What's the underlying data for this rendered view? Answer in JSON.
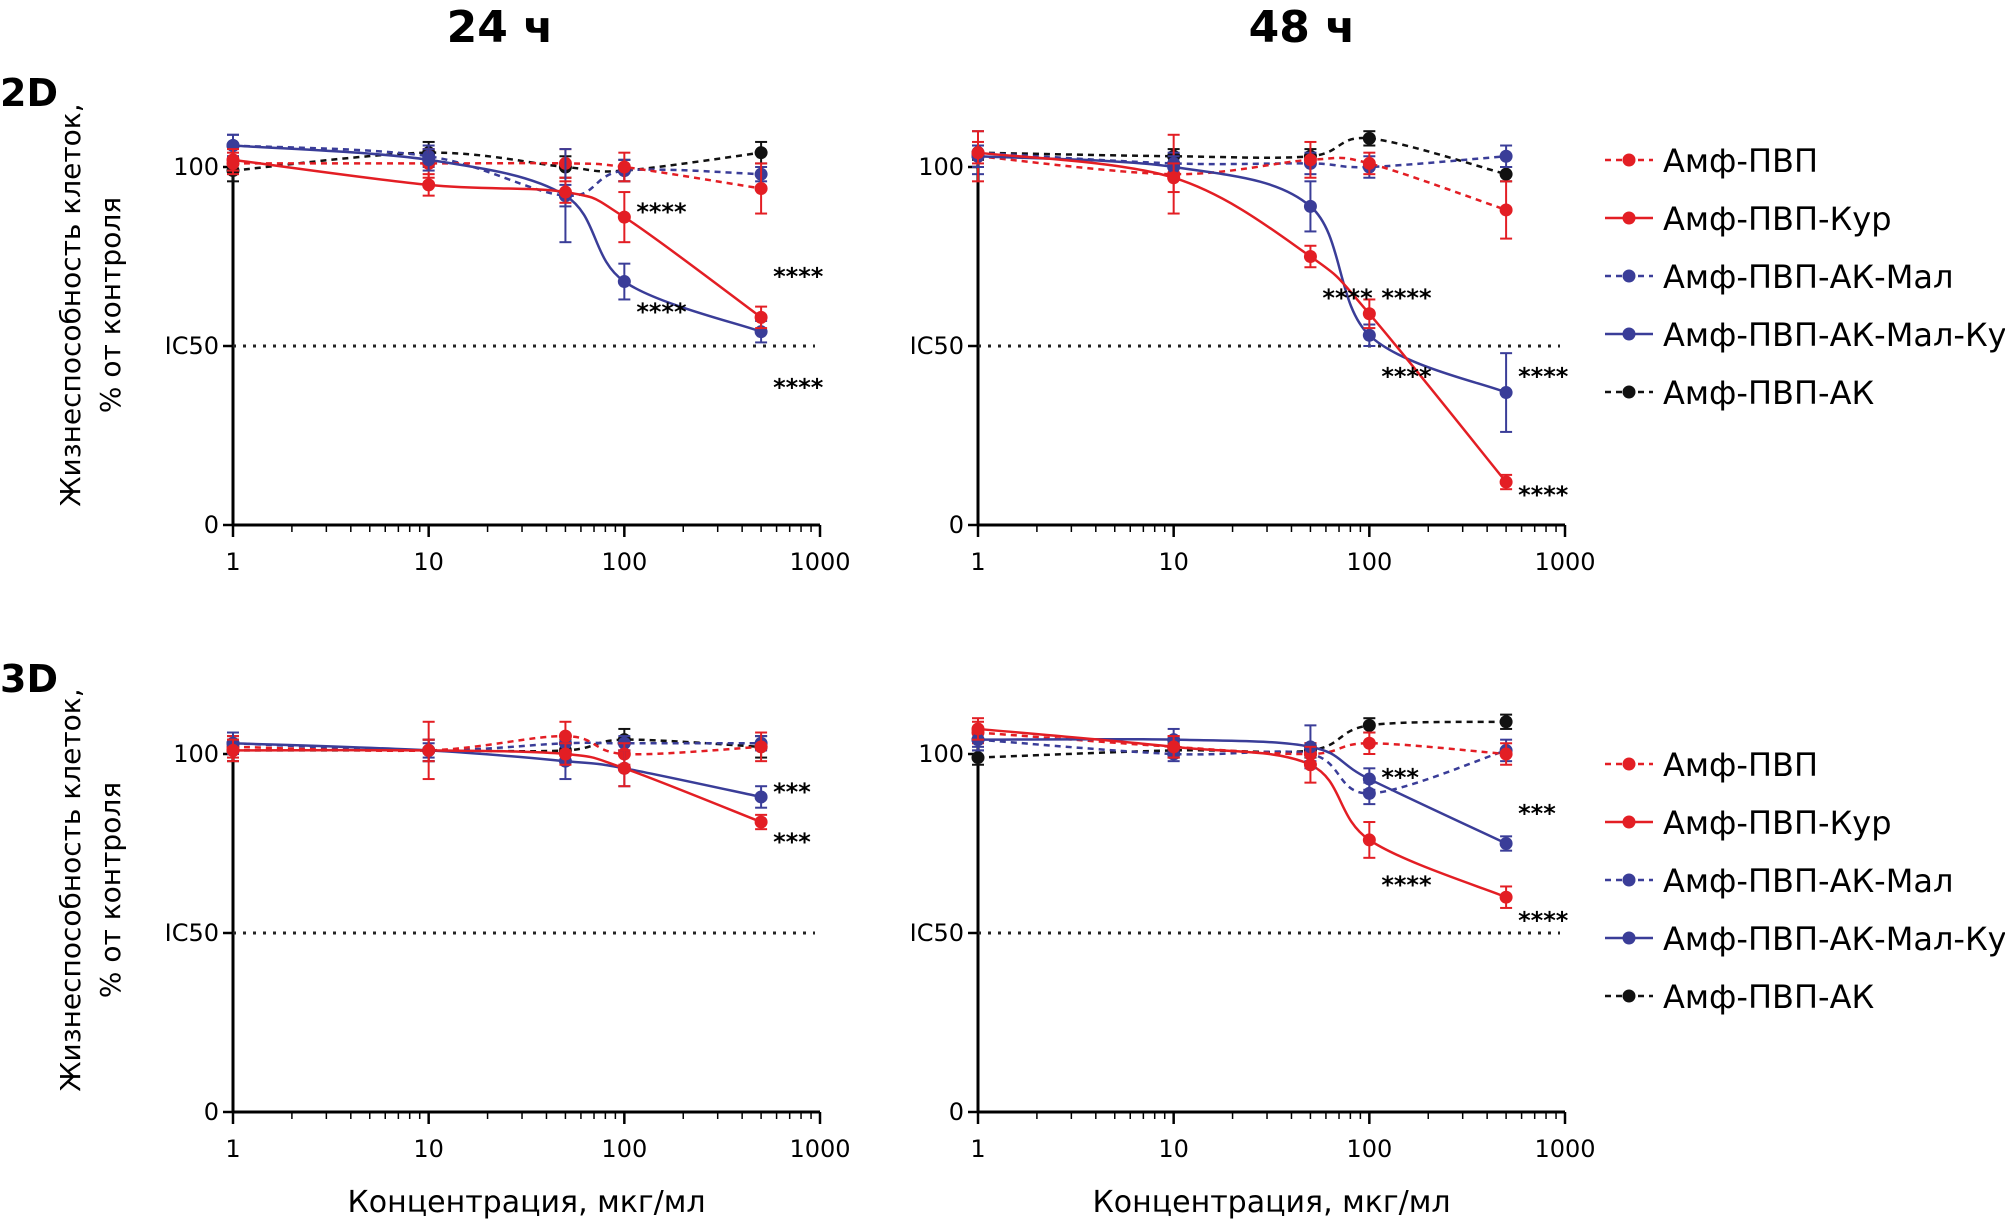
{
  "column_titles": [
    "24 ч",
    "48 ч"
  ],
  "row_labels": [
    "2D",
    "3D"
  ],
  "ylabel_line1": "Жизнеспособность клеток,",
  "ylabel_line2": "% от контроля",
  "colors": {
    "red": "#e31e24",
    "blue": "#3a3d98",
    "black": "#111111"
  },
  "legend": [
    {
      "name": "Амф-ПВП",
      "color": "#e31e24",
      "dashed": true
    },
    {
      "name": "Амф-ПВП-Кур",
      "color": "#e31e24",
      "dashed": false
    },
    {
      "name": "Амф-ПВП-АК-Мал",
      "color": "#3a3d98",
      "dashed": true
    },
    {
      "name": "Амф-ПВП-АК-Мал-Кур",
      "color": "#3a3d98",
      "dashed": false
    },
    {
      "name": "Амф-ПВП-АК",
      "color": "#111111",
      "dashed": true
    }
  ],
  "chart_data": [
    {
      "type": "scatter",
      "panel": "2D 24 ч",
      "xlabel": "",
      "xscale": "log",
      "xlim": [
        1,
        1000
      ],
      "ylim": [
        0,
        120
      ],
      "x_ticks": [
        "1",
        "10",
        "100",
        "1000"
      ],
      "y_ticks": [
        "0",
        "IC50",
        "100"
      ],
      "reference_line": {
        "label": "IC50",
        "y": 50
      },
      "series": [
        {
          "name": "Амф-ПВП",
          "x": [
            1,
            10,
            50,
            100,
            500
          ],
          "y": [
            101,
            101,
            101,
            100,
            94
          ],
          "err": [
            3,
            4,
            4,
            4,
            7
          ]
        },
        {
          "name": "Амф-ПВП-Кур",
          "x": [
            1,
            10,
            50,
            100,
            500
          ],
          "y": [
            102,
            95,
            93,
            86,
            58
          ],
          "err": [
            3,
            3,
            3,
            7,
            3
          ]
        },
        {
          "name": "Амф-ПВП-АК-Мал",
          "x": [
            1,
            10,
            50,
            100,
            500
          ],
          "y": [
            106,
            103,
            92,
            99,
            98
          ],
          "err": [
            3,
            3,
            3,
            3,
            2
          ]
        },
        {
          "name": "Амф-ПВП-АК-Мал-Кур",
          "x": [
            1,
            10,
            50,
            100,
            500
          ],
          "y": [
            106,
            102,
            92,
            68,
            54
          ],
          "err": [
            3,
            3,
            13,
            5,
            3
          ]
        },
        {
          "name": "Амф-ПВП-АК",
          "x": [
            1,
            10,
            50,
            100,
            500
          ],
          "y": [
            99,
            104,
            100,
            99,
            104
          ],
          "err": [
            3,
            3,
            3,
            3,
            3
          ]
        }
      ],
      "annotations": [
        {
          "text": "****",
          "x": 100,
          "y": 88
        },
        {
          "text": "****",
          "x": 500,
          "y": 70
        },
        {
          "text": "****",
          "x": 100,
          "y": 60
        },
        {
          "text": "****",
          "x": 500,
          "y": 39
        }
      ]
    },
    {
      "type": "scatter",
      "panel": "2D 48 ч",
      "xlabel": "",
      "xscale": "log",
      "xlim": [
        1,
        1000
      ],
      "ylim": [
        0,
        120
      ],
      "x_ticks": [
        "1",
        "10",
        "100",
        "1000"
      ],
      "y_ticks": [
        "0",
        "IC50",
        "100"
      ],
      "reference_line": {
        "label": "IC50",
        "y": 50
      },
      "series": [
        {
          "name": "Амф-ПВП",
          "x": [
            1,
            10,
            50,
            100,
            500
          ],
          "y": [
            103,
            98,
            102,
            101,
            88
          ],
          "err": [
            7,
            11,
            5,
            3,
            8
          ]
        },
        {
          "name": "Амф-ПВП-Кур",
          "x": [
            1,
            10,
            50,
            100,
            500
          ],
          "y": [
            104,
            97,
            75,
            59,
            12
          ],
          "err": [
            3,
            4,
            3,
            4,
            2
          ]
        },
        {
          "name": "Амф-ПВП-АК-Мал",
          "x": [
            1,
            10,
            50,
            100,
            500
          ],
          "y": [
            104,
            101,
            101,
            100,
            103
          ],
          "err": [
            6,
            3,
            3,
            3,
            3
          ]
        },
        {
          "name": "Амф-ПВП-АК-Мал-Кур",
          "x": [
            1,
            10,
            50,
            100,
            500
          ],
          "y": [
            103,
            100,
            89,
            53,
            37
          ],
          "err": [
            3,
            3,
            7,
            3,
            11
          ]
        },
        {
          "name": "Амф-ПВП-АК",
          "x": [
            1,
            10,
            50,
            100,
            500
          ],
          "y": [
            104,
            103,
            103,
            108,
            98
          ],
          "err": [
            2,
            2,
            2,
            2,
            2
          ]
        }
      ],
      "annotations": [
        {
          "text": "****",
          "x": 50,
          "y": 64
        },
        {
          "text": "****",
          "x": 100,
          "y": 64
        },
        {
          "text": "****",
          "x": 100,
          "y": 42
        },
        {
          "text": "****",
          "x": 500,
          "y": 42
        },
        {
          "text": "****",
          "x": 500,
          "y": 9
        }
      ]
    },
    {
      "type": "scatter",
      "panel": "3D 24 ч",
      "xlabel": "Концентрация, мкг/мл",
      "xscale": "log",
      "xlim": [
        1,
        1000
      ],
      "ylim": [
        0,
        120
      ],
      "x_ticks": [
        "1",
        "10",
        "100",
        "1000"
      ],
      "y_ticks": [
        "0",
        "IC50",
        "100"
      ],
      "reference_line": {
        "label": "IC50",
        "y": 50
      },
      "series": [
        {
          "name": "Амф-ПВП",
          "x": [
            1,
            10,
            50,
            100,
            500
          ],
          "y": [
            102,
            101,
            105,
            100,
            102
          ],
          "err": [
            3,
            8,
            4,
            3,
            4
          ]
        },
        {
          "name": "Амф-ПВП-Кур",
          "x": [
            1,
            10,
            50,
            100,
            500
          ],
          "y": [
            101,
            101,
            100,
            96,
            81
          ],
          "err": [
            3,
            3,
            3,
            5,
            2
          ]
        },
        {
          "name": "Амф-ПВП-АК-Мал",
          "x": [
            1,
            10,
            50,
            100,
            500
          ],
          "y": [
            103,
            101,
            103,
            103,
            103
          ],
          "err": [
            2,
            2,
            2,
            2,
            2
          ]
        },
        {
          "name": "Амф-ПВП-АК-Мал-Кур",
          "x": [
            1,
            10,
            50,
            100,
            500
          ],
          "y": [
            103,
            101,
            98,
            96,
            88
          ],
          "err": [
            3,
            3,
            5,
            5,
            3
          ]
        },
        {
          "name": "Амф-ПВП-АК",
          "x": [
            1,
            10,
            50,
            100,
            500
          ],
          "y": [
            101,
            101,
            101,
            104,
            102
          ],
          "err": [
            3,
            3,
            3,
            3,
            3
          ]
        }
      ],
      "annotations": [
        {
          "text": "***",
          "x": 500,
          "y": 90
        },
        {
          "text": "***",
          "x": 500,
          "y": 76
        }
      ]
    },
    {
      "type": "scatter",
      "panel": "3D 48 ч",
      "xlabel": "Концентрация, мкг/мл",
      "xscale": "log",
      "xlim": [
        1,
        1000
      ],
      "ylim": [
        0,
        120
      ],
      "x_ticks": [
        "1",
        "10",
        "100",
        "1000"
      ],
      "y_ticks": [
        "0",
        "IC50",
        "100"
      ],
      "reference_line": {
        "label": "IC50",
        "y": 50
      },
      "series": [
        {
          "name": "Амф-ПВП",
          "x": [
            1,
            10,
            50,
            100,
            500
          ],
          "y": [
            106,
            102,
            100,
            103,
            100
          ],
          "err": [
            3,
            3,
            3,
            3,
            3
          ]
        },
        {
          "name": "Амф-ПВП-Кур",
          "x": [
            1,
            10,
            50,
            100,
            500
          ],
          "y": [
            107,
            102,
            97,
            76,
            60
          ],
          "err": [
            3,
            3,
            5,
            5,
            3
          ]
        },
        {
          "name": "Амф-ПВП-АК-Мал",
          "x": [
            1,
            10,
            50,
            100,
            500
          ],
          "y": [
            104,
            100,
            100,
            89,
            101
          ],
          "err": [
            2,
            2,
            2,
            3,
            3
          ]
        },
        {
          "name": "Амф-ПВП-АК-Мал-Кур",
          "x": [
            1,
            10,
            50,
            100,
            500
          ],
          "y": [
            104,
            104,
            102,
            93,
            75
          ],
          "err": [
            3,
            3,
            6,
            3,
            2
          ]
        },
        {
          "name": "Амф-ПВП-АК",
          "x": [
            1,
            10,
            50,
            100,
            500
          ],
          "y": [
            99,
            101,
            101,
            108,
            109
          ],
          "err": [
            2,
            2,
            2,
            2,
            2
          ]
        }
      ],
      "annotations": [
        {
          "text": "***",
          "x": 100,
          "y": 94
        },
        {
          "text": "***",
          "x": 500,
          "y": 84
        },
        {
          "text": "****",
          "x": 100,
          "y": 64
        },
        {
          "text": "****",
          "x": 500,
          "y": 54
        }
      ]
    }
  ]
}
